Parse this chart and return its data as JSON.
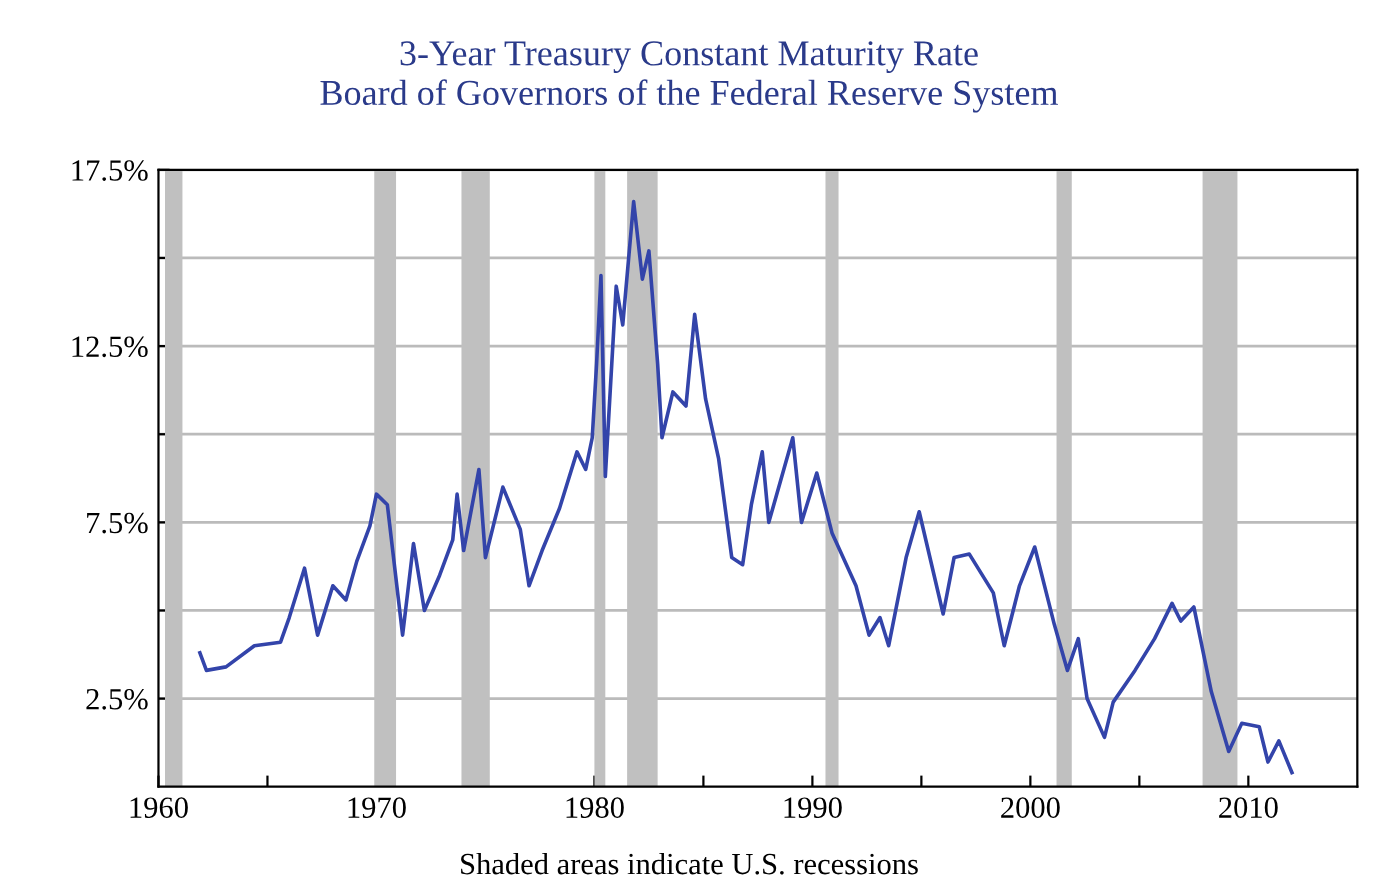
{
  "chart_data": {
    "type": "line",
    "title": "3-Year Treasury Constant Maturity Rate\nBoard of Governors of the Federal Reserve System",
    "annotations": [
      "Shaded areas indicate U.S. recessions"
    ],
    "x": [
      1961.9,
      1962.2,
      1963.1,
      1964.4,
      1965.6,
      1966.0,
      1966.7,
      1967.3,
      1968.0,
      1968.6,
      1969.1,
      1969.7,
      1970.0,
      1970.5,
      1971.2,
      1971.7,
      1972.2,
      1972.9,
      1973.5,
      1973.7,
      1974.0,
      1974.7,
      1975.0,
      1975.8,
      1976.6,
      1977.0,
      1977.6,
      1978.4,
      1979.2,
      1979.6,
      1979.9,
      1980.1,
      1980.3,
      1980.5,
      1981.0,
      1981.3,
      1981.8,
      1982.2,
      1982.5,
      1982.9,
      1983.1,
      1983.6,
      1984.2,
      1984.6,
      1985.1,
      1985.7,
      1986.3,
      1986.8,
      1987.2,
      1987.7,
      1988.0,
      1989.1,
      1989.5,
      1990.2,
      1990.9,
      1992.0,
      1992.6,
      1993.1,
      1993.5,
      1994.3,
      1994.9,
      1996.0,
      1996.5,
      1997.2,
      1998.3,
      1998.8,
      1999.5,
      2000.2,
      2001.1,
      2001.7,
      2002.2,
      2002.6,
      2003.4,
      2003.8,
      2004.8,
      2005.7,
      2006.5,
      2006.9,
      2007.5,
      2008.3,
      2009.1,
      2009.7,
      2010.5,
      2010.9,
      2011.4,
      2012.0
    ],
    "series": [
      {
        "color": "#3344aa",
        "values": [
          3.8,
          3.3,
          3.4,
          4.0,
          4.1,
          4.8,
          6.2,
          4.3,
          5.7,
          5.3,
          6.4,
          7.4,
          8.3,
          8.0,
          4.3,
          6.9,
          5.0,
          6.0,
          7.0,
          8.3,
          6.7,
          9.0,
          6.5,
          8.5,
          7.3,
          5.7,
          6.7,
          7.9,
          9.5,
          9.0,
          9.9,
          12.0,
          14.5,
          8.8,
          14.2,
          13.1,
          16.6,
          14.4,
          15.2,
          12.0,
          9.9,
          11.2,
          10.8,
          13.4,
          11.0,
          9.3,
          6.5,
          6.3,
          8.0,
          9.5,
          7.5,
          9.9,
          7.5,
          8.9,
          7.2,
          5.7,
          4.3,
          4.8,
          4.0,
          6.5,
          7.8,
          4.9,
          6.5,
          6.6,
          5.5,
          4.0,
          5.7,
          6.8,
          4.6,
          3.3,
          4.2,
          2.5,
          1.4,
          2.4,
          3.3,
          4.2,
          5.2,
          4.7,
          5.1,
          2.7,
          1.0,
          1.8,
          1.7,
          0.7,
          1.3,
          0.4
        ]
      }
    ],
    "xlim": [
      1960,
      2015
    ],
    "xticks": [
      1960,
      {
        "value": 1965,
        "label": null
      },
      1970,
      {
        "value": 1975,
        "label": null
      },
      1980,
      {
        "value": 1985,
        "label": null
      },
      1990,
      {
        "value": 1995,
        "label": null
      },
      2000,
      {
        "value": 2005,
        "label": null
      },
      2010
    ],
    "ylim": [
      0,
      17.5
    ],
    "yticks": [
      {
        "value": 2.5,
        "label": "2.5%"
      },
      {
        "value": 5,
        "label": null
      },
      {
        "value": 7.5,
        "label": "7.5%"
      },
      {
        "value": 10,
        "label": null
      },
      {
        "value": 12.5,
        "label": "12.5%"
      },
      {
        "value": 15,
        "label": null
      },
      {
        "value": 17.5,
        "label": "17.5%"
      }
    ],
    "grid": "y",
    "bands": [
      {
        "axis": "x",
        "from": 1960.3,
        "to": 1961.1,
        "color": "#c0c0c0"
      },
      {
        "axis": "x",
        "from": 1969.9,
        "to": 1970.9,
        "color": "#c0c0c0"
      },
      {
        "axis": "x",
        "from": 1973.9,
        "to": 1975.2,
        "color": "#c0c0c0"
      },
      {
        "axis": "x",
        "from": 1980.0,
        "to": 1980.5,
        "color": "#c0c0c0"
      },
      {
        "axis": "x",
        "from": 1981.5,
        "to": 1982.9,
        "color": "#c0c0c0"
      },
      {
        "axis": "x",
        "from": 1990.6,
        "to": 1991.2,
        "color": "#c0c0c0"
      },
      {
        "axis": "x",
        "from": 2001.2,
        "to": 2001.9,
        "color": "#c0c0c0"
      },
      {
        "axis": "x",
        "from": 2007.9,
        "to": 2009.5,
        "color": "#c0c0c0"
      }
    ]
  }
}
